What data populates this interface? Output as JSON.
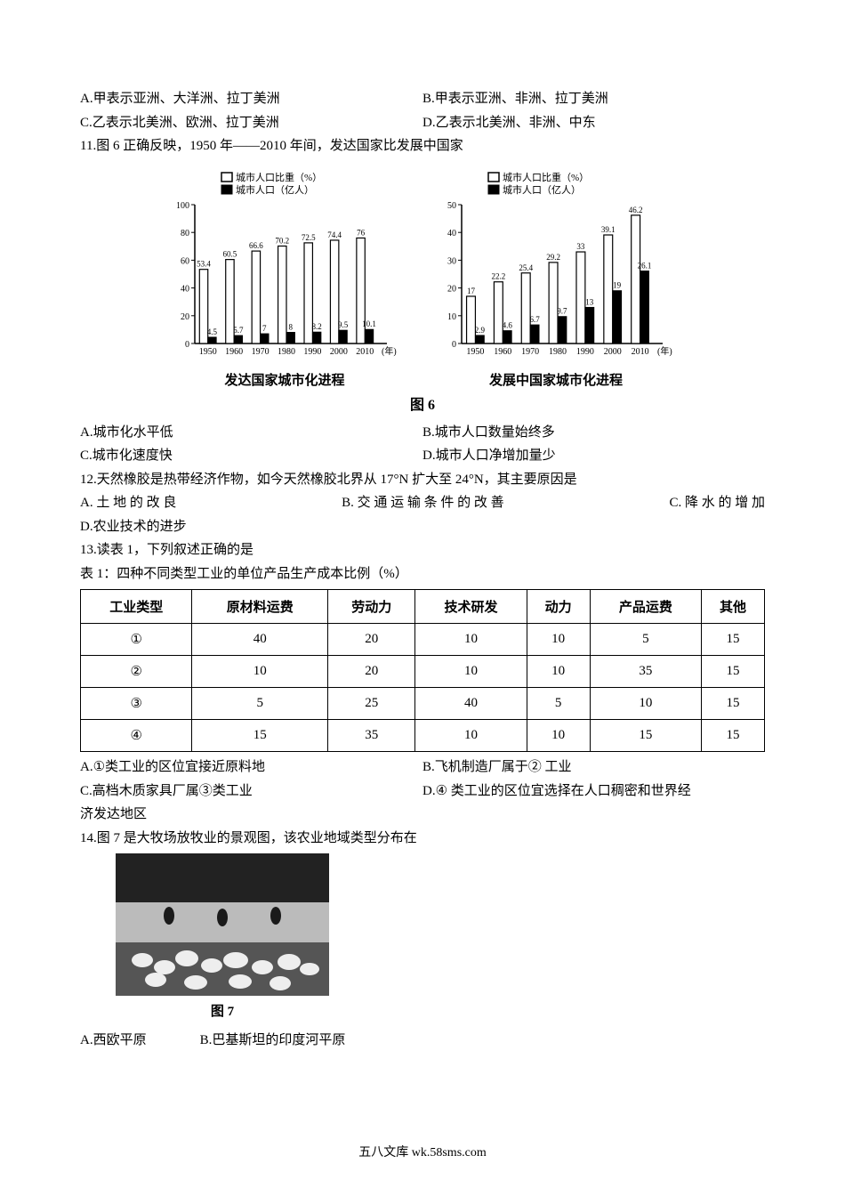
{
  "q10opts": {
    "A": "A.甲表示亚洲、大洋洲、拉丁美洲",
    "B": "B.甲表示亚洲、非洲、拉丁美洲",
    "C": "C.乙表示北美洲、欧洲、拉丁美洲",
    "D": "D.乙表示北美洲、非洲、中东"
  },
  "q11stem": "11.图 6 正确反映，1950 年——2010 年间，发达国家比发展中国家",
  "chart1": {
    "legend_pct": "城市人口比重（%）",
    "legend_pop": "城市人口（亿人）",
    "caption": "发达国家城市化进程",
    "years": [
      "1950",
      "1960",
      "1970",
      "1980",
      "1990",
      "2000",
      "2010"
    ],
    "x_axis_label": "(年)",
    "pct": [
      53.4,
      60.5,
      66.6,
      70.2,
      72.5,
      74.4,
      76.0
    ],
    "pop": [
      4.5,
      5.7,
      7.0,
      8.0,
      8.2,
      9.5,
      10.1
    ],
    "yticks": [
      0,
      20,
      40,
      60,
      80,
      100
    ],
    "ylim": 100,
    "pct_color": "#ffffff",
    "pop_color": "#000000",
    "grid_color": "#000000",
    "label_fontsize": 9
  },
  "chart2": {
    "legend_pct": "城市人口比重（%）",
    "legend_pop": "城市人口（亿人）",
    "caption": "发展中国家城市化进程",
    "years": [
      "1950",
      "1960",
      "1970",
      "1980",
      "1990",
      "2000",
      "2010"
    ],
    "x_axis_label": "(年)",
    "pct": [
      17.0,
      22.2,
      25.4,
      29.2,
      33.0,
      39.1,
      46.2
    ],
    "pop": [
      2.9,
      4.6,
      6.7,
      9.7,
      13.0,
      19.0,
      26.1
    ],
    "yticks": [
      0,
      10,
      20,
      30,
      40,
      50
    ],
    "ylim": 50,
    "pct_color": "#ffffff",
    "pop_color": "#000000",
    "grid_color": "#000000",
    "label_fontsize": 9
  },
  "fig6_label": "图 6",
  "q11opts": {
    "A": "A.城市化水平低",
    "B": "B.城市人口数量始终多",
    "C": "C.城市化速度快",
    "D": "D.城市人口净增加量少"
  },
  "q12stem": "12.天然橡胶是热带经济作物，如今天然橡胶北界从 17°N 扩大至 24°N，其主要原因是",
  "q12opts": {
    "A": "A. 土 地 的 改 良",
    "B": "B. 交 通 运 输 条 件 的 改 善",
    "C": "C. 降 水 的 增 加",
    "D": "D.农业技术的进步"
  },
  "q13stem": "13.读表 1，下列叙述正确的是",
  "table1_caption": "表 1：四种不同类型工业的单位产品生产成本比例（%）",
  "table1": {
    "headers": [
      "工业类型",
      "原材料运费",
      "劳动力",
      "技术研发",
      "动力",
      "产品运费",
      "其他"
    ],
    "rows": [
      [
        "①",
        "40",
        "20",
        "10",
        "10",
        "5",
        "15"
      ],
      [
        "②",
        "10",
        "20",
        "10",
        "10",
        "35",
        "15"
      ],
      [
        "③",
        "5",
        "25",
        "40",
        "5",
        "10",
        "15"
      ],
      [
        "④",
        "15",
        "35",
        "10",
        "10",
        "15",
        "15"
      ]
    ]
  },
  "q13opts": {
    "A": "A.①类工业的区位宜接近原料地",
    "B": "B.飞机制造厂属于② 工业",
    "C": "C.高档木质家具厂属③类工业",
    "D": "D.④ 类工业的区位宜选择在人口稠密和世界经",
    "D2": "济发达地区"
  },
  "q14stem": "14.图 7 是大牧场放牧业的景观图，该农业地域类型分布在",
  "fig7_label": "图 7",
  "q14opts": {
    "A": "A.西欧平原",
    "B": "B.巴基斯坦的印度河平原"
  },
  "footer": "五八文库 wk.58sms.com"
}
